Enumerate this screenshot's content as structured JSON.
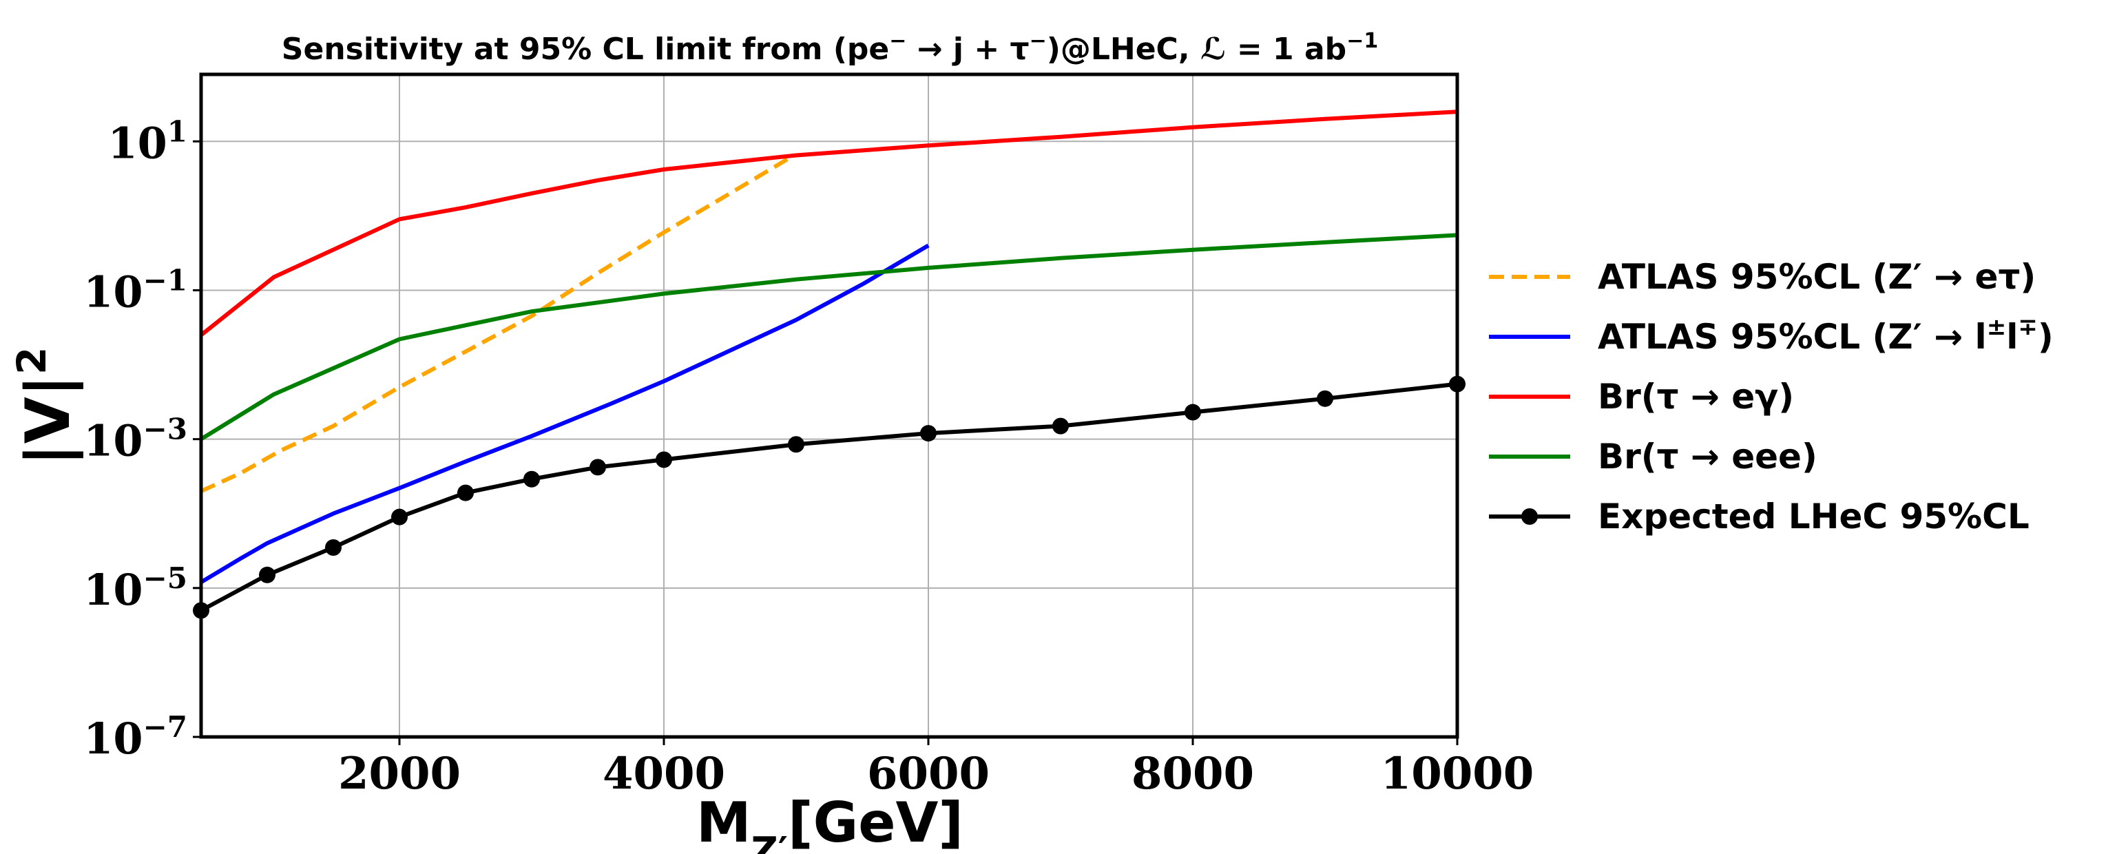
{
  "chart_data": {
    "type": "line",
    "title_parts": {
      "lead": "Sensitivity at 95% CL limit from (pe",
      "minus1": "−",
      "arrow": " → j + τ",
      "minus2": "−",
      "tail": ")@LHeC, ℒ = 1 ab",
      "exp": "−1"
    },
    "xlabel": {
      "base": "M",
      "sub": "Z′",
      "rest": "[GeV]"
    },
    "ylabel": {
      "base": "|V|",
      "sup": "2"
    },
    "xlim": [
      500,
      10000
    ],
    "ylim_log10": [
      -7,
      1.9
    ],
    "x_scale": "linear",
    "y_scale": "log",
    "grid": true,
    "legend_position": "outside-right",
    "x_ticks": [
      {
        "v": 2000,
        "label": "2000"
      },
      {
        "v": 4000,
        "label": "4000"
      },
      {
        "v": 6000,
        "label": "6000"
      },
      {
        "v": 8000,
        "label": "8000"
      },
      {
        "v": 10000,
        "label": "10000"
      }
    ],
    "y_ticks": [
      {
        "exp": 1,
        "base": "10",
        "sup": "1"
      },
      {
        "exp": -1,
        "base": "10",
        "sup": "−1"
      },
      {
        "exp": -3,
        "base": "10",
        "sup": "−3"
      },
      {
        "exp": -5,
        "base": "10",
        "sup": "−5"
      },
      {
        "exp": -7,
        "base": "10",
        "sup": "−7"
      }
    ],
    "series": [
      {
        "key": "atlas_etau",
        "color": "#ffa500",
        "dashed": true,
        "markers": false,
        "legend": {
          "text": "ATLAS 95%CL (Z′ → eτ)"
        },
        "x": [
          500,
          800,
          1100,
          1500,
          2000,
          2500,
          3000,
          3500,
          4000,
          4500,
          4950
        ],
        "y": [
          0.0002,
          0.00035,
          0.0007,
          0.0015,
          0.005,
          0.015,
          0.045,
          0.17,
          0.6,
          2.0,
          6.0
        ]
      },
      {
        "key": "atlas_ll",
        "color": "#0000ff",
        "dashed": false,
        "markers": false,
        "legend": {
          "text": "ATLAS 95%CL (Z′ → l",
          "sup": "±",
          "text2": "l",
          "sup2": "∓",
          "tail": ")"
        },
        "x": [
          500,
          800,
          1000,
          1500,
          2000,
          2500,
          3000,
          3600,
          4000,
          5000,
          5500,
          6000
        ],
        "y": [
          1.2e-05,
          2.5e-05,
          4e-05,
          0.0001,
          0.00022,
          0.0005,
          0.0011,
          0.003,
          0.006,
          0.04,
          0.12,
          0.4
        ]
      },
      {
        "key": "br_egamma",
        "color": "#ff0000",
        "dashed": false,
        "markers": false,
        "legend": {
          "text": "Br(τ → eγ)"
        },
        "x": [
          500,
          1050,
          2000,
          2500,
          3000,
          3500,
          4000,
          5000,
          6000,
          7000,
          8000,
          9000,
          10000
        ],
        "y": [
          0.025,
          0.15,
          0.9,
          1.3,
          2.0,
          3.0,
          4.2,
          6.5,
          8.8,
          11.5,
          15.5,
          20.0,
          25.0
        ]
      },
      {
        "key": "br_eee",
        "color": "#008000",
        "dashed": false,
        "markers": false,
        "legend": {
          "text": "Br(τ → eee)"
        },
        "x": [
          500,
          1050,
          2000,
          3000,
          4000,
          5000,
          6000,
          7000,
          8000,
          9000,
          10000
        ],
        "y": [
          0.001,
          0.004,
          0.022,
          0.052,
          0.09,
          0.14,
          0.2,
          0.27,
          0.35,
          0.44,
          0.55
        ]
      },
      {
        "key": "lhec_expected",
        "color": "#000000",
        "dashed": false,
        "markers": true,
        "legend": {
          "text": "Expected LHeC 95%CL"
        },
        "x": [
          500,
          1000,
          1500,
          2000,
          2500,
          3000,
          3500,
          4000,
          5000,
          6000,
          7000,
          8000,
          9000,
          10000
        ],
        "y": [
          5e-06,
          1.5e-05,
          3.5e-05,
          9e-05,
          0.00019,
          0.00029,
          0.00042,
          0.00053,
          0.00085,
          0.0012,
          0.0015,
          0.0023,
          0.0035,
          0.0055
        ]
      }
    ]
  }
}
